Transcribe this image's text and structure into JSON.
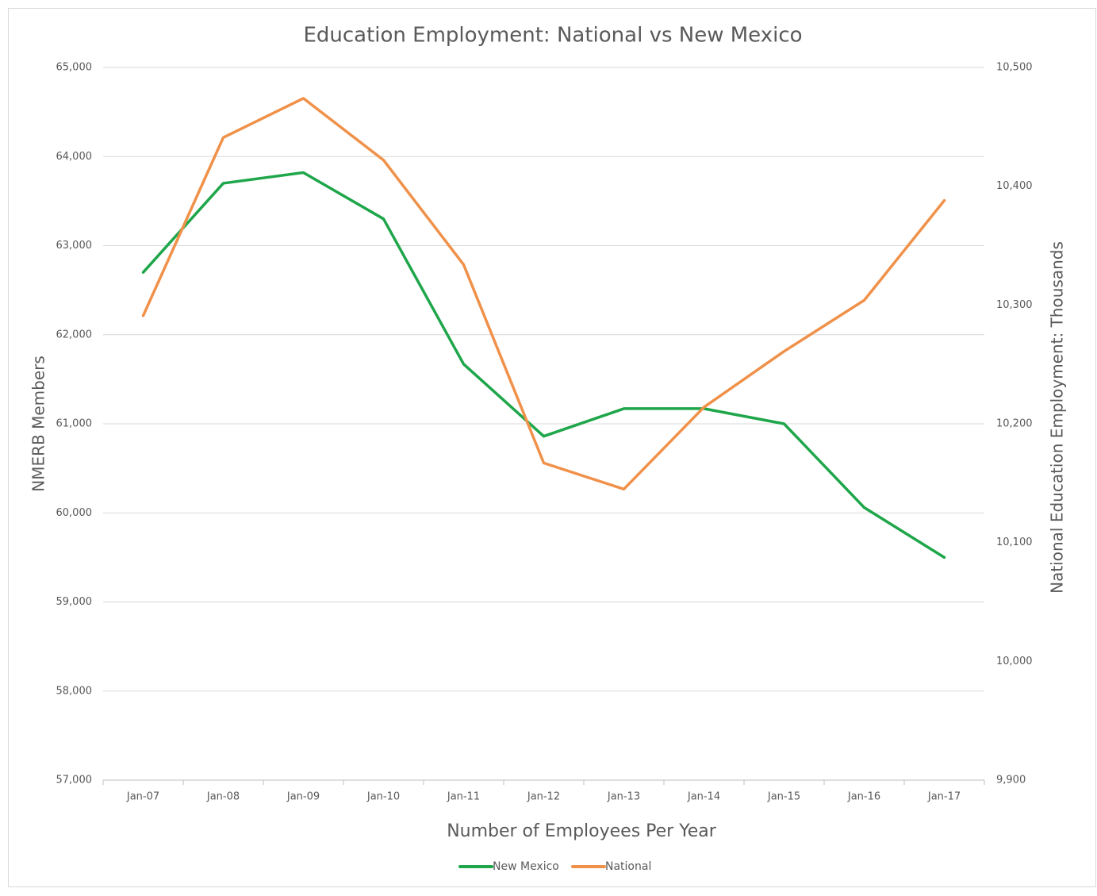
{
  "chart_data": {
    "type": "line",
    "title": "Education Employment: National vs New Mexico",
    "x_label": "Number of Employees Per Year",
    "y_label": "NMERB Members",
    "y2_label": "National Education Employment: Thousands",
    "categories": [
      "Jan-07",
      "Jan-08",
      "Jan-09",
      "Jan-10",
      "Jan-11",
      "Jan-12",
      "Jan-13",
      "Jan-14",
      "Jan-15",
      "Jan-16",
      "Jan-17"
    ],
    "series": [
      {
        "name": "New Mexico",
        "color": "#1fa64a",
        "axis": "y",
        "values": [
          62700,
          63700,
          63820,
          63300,
          61670,
          60860,
          61170,
          61170,
          61000,
          60060,
          59500
        ]
      },
      {
        "name": "National",
        "color": "#f0914a",
        "axis": "y2",
        "values": [
          10291,
          10441,
          10474,
          10422,
          10334,
          10167,
          10145,
          10214,
          10261,
          10304,
          10388
        ]
      }
    ],
    "ylim": [
      57000,
      65000
    ],
    "yticks": [
      {
        "value": 57000,
        "label": "57,000"
      },
      {
        "value": 58000,
        "label": "58,000"
      },
      {
        "value": 59000,
        "label": "59,000"
      },
      {
        "value": 60000,
        "label": "60,000"
      },
      {
        "value": 61000,
        "label": "61,000"
      },
      {
        "value": 62000,
        "label": "62,000"
      },
      {
        "value": 63000,
        "label": "63,000"
      },
      {
        "value": 64000,
        "label": "64,000"
      },
      {
        "value": 65000,
        "label": "65,000"
      }
    ],
    "y2lim": [
      9900,
      10500
    ],
    "y2ticks": [
      {
        "value": 9900,
        "label": "9,900"
      },
      {
        "value": 10000,
        "label": "10,000"
      },
      {
        "value": 10100,
        "label": "10,100"
      },
      {
        "value": 10200,
        "label": "10,200"
      },
      {
        "value": 10300,
        "label": "10,300"
      },
      {
        "value": 10400,
        "label": "10,400"
      },
      {
        "value": 10500,
        "label": "10,500"
      }
    ],
    "grid": true,
    "legend": "bottom"
  }
}
